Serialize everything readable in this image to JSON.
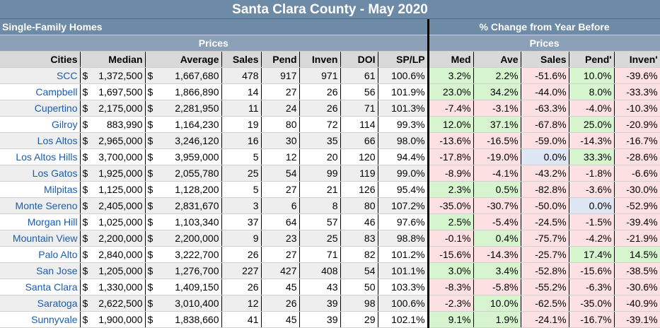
{
  "title": "Santa Clara County - May 2020",
  "left_section_title": "Single-Family Homes",
  "right_section_title": "% Change from Year Before",
  "left_prices_label": "Prices",
  "right_prices_label": "Prices",
  "headers": [
    "Cities",
    "Median",
    "Average",
    "Sales",
    "Pend",
    "Inven",
    "DOI",
    "SP/LP",
    "Med",
    "Ave",
    "Sales",
    "Pend'",
    "Inven'"
  ],
  "colors": {
    "header_blue": "#6d8aa6",
    "positive": "#d6f5cf",
    "negative": "#fde0e2",
    "neutral": "#dde6f2",
    "city_link": "#1a5dad"
  },
  "rows": [
    {
      "city": "SCC",
      "median": "1,372,500",
      "average": "1,667,680",
      "sales": "478",
      "pend": "917",
      "inven": "971",
      "doi": "61",
      "splp": "100.6%",
      "med_chg": "3.2%",
      "ave_chg": "2.2%",
      "sales_chg": "-51.6%",
      "pend_chg": "10.0%",
      "inven_chg": "-39.6%"
    },
    {
      "city": "Campbell",
      "median": "1,697,500",
      "average": "1,866,890",
      "sales": "14",
      "pend": "27",
      "inven": "26",
      "doi": "56",
      "splp": "101.9%",
      "med_chg": "23.0%",
      "ave_chg": "34.2%",
      "sales_chg": "-44.0%",
      "pend_chg": "8.0%",
      "inven_chg": "-33.3%"
    },
    {
      "city": "Cupertino",
      "median": "2,175,000",
      "average": "2,281,950",
      "sales": "11",
      "pend": "24",
      "inven": "26",
      "doi": "71",
      "splp": "101.3%",
      "med_chg": "-7.4%",
      "ave_chg": "-3.1%",
      "sales_chg": "-63.3%",
      "pend_chg": "-4.0%",
      "inven_chg": "-10.3%"
    },
    {
      "city": "Gilroy",
      "median": "883,990",
      "average": "1,164,230",
      "sales": "19",
      "pend": "80",
      "inven": "72",
      "doi": "114",
      "splp": "99.3%",
      "med_chg": "12.0%",
      "ave_chg": "37.1%",
      "sales_chg": "-67.8%",
      "pend_chg": "25.0%",
      "inven_chg": "-20.9%"
    },
    {
      "city": "Los Altos",
      "median": "2,965,000",
      "average": "3,246,120",
      "sales": "16",
      "pend": "30",
      "inven": "35",
      "doi": "66",
      "splp": "98.0%",
      "med_chg": "-13.6%",
      "ave_chg": "-16.5%",
      "sales_chg": "-59.0%",
      "pend_chg": "-14.3%",
      "inven_chg": "-16.7%"
    },
    {
      "city": "Los Altos Hills",
      "median": "3,700,000",
      "average": "3,959,000",
      "sales": "5",
      "pend": "12",
      "inven": "20",
      "doi": "120",
      "splp": "94.4%",
      "med_chg": "-17.8%",
      "ave_chg": "-19.0%",
      "sales_chg": "0.0%",
      "pend_chg": "33.3%",
      "inven_chg": "-28.6%"
    },
    {
      "city": "Los Gatos",
      "median": "1,925,000",
      "average": "2,055,780",
      "sales": "25",
      "pend": "54",
      "inven": "99",
      "doi": "119",
      "splp": "99.0%",
      "med_chg": "-8.9%",
      "ave_chg": "-4.1%",
      "sales_chg": "-43.2%",
      "pend_chg": "-1.8%",
      "inven_chg": "-6.6%"
    },
    {
      "city": "Milpitas",
      "median": "1,125,000",
      "average": "1,128,200",
      "sales": "5",
      "pend": "27",
      "inven": "21",
      "doi": "126",
      "splp": "95.4%",
      "med_chg": "2.3%",
      "ave_chg": "0.5%",
      "sales_chg": "-82.8%",
      "pend_chg": "-3.6%",
      "inven_chg": "-30.0%"
    },
    {
      "city": "Monte Sereno",
      "median": "2,405,000",
      "average": "2,831,670",
      "sales": "3",
      "pend": "6",
      "inven": "8",
      "doi": "80",
      "splp": "107.2%",
      "med_chg": "-35.0%",
      "ave_chg": "-30.7%",
      "sales_chg": "-50.0%",
      "pend_chg": "0.0%",
      "inven_chg": "-52.9%"
    },
    {
      "city": "Morgan Hill",
      "median": "1,025,000",
      "average": "1,103,340",
      "sales": "37",
      "pend": "64",
      "inven": "57",
      "doi": "46",
      "splp": "97.6%",
      "med_chg": "2.5%",
      "ave_chg": "-5.4%",
      "sales_chg": "-24.5%",
      "pend_chg": "-1.5%",
      "inven_chg": "-39.4%"
    },
    {
      "city": "Mountain View",
      "median": "2,200,000",
      "average": "2,200,000",
      "sales": "9",
      "pend": "23",
      "inven": "25",
      "doi": "83",
      "splp": "98.8%",
      "med_chg": "-0.1%",
      "ave_chg": "0.4%",
      "sales_chg": "-75.7%",
      "pend_chg": "-4.2%",
      "inven_chg": "-21.9%"
    },
    {
      "city": "Palo Alto",
      "median": "2,840,000",
      "average": "3,222,700",
      "sales": "26",
      "pend": "27",
      "inven": "71",
      "doi": "82",
      "splp": "101.2%",
      "med_chg": "-15.6%",
      "ave_chg": "-14.3%",
      "sales_chg": "-25.7%",
      "pend_chg": "17.4%",
      "inven_chg": "14.5%"
    },
    {
      "city": "San Jose",
      "median": "1,205,000",
      "average": "1,276,700",
      "sales": "227",
      "pend": "427",
      "inven": "408",
      "doi": "54",
      "splp": "101.1%",
      "med_chg": "3.0%",
      "ave_chg": "3.4%",
      "sales_chg": "-52.8%",
      "pend_chg": "-15.6%",
      "inven_chg": "-38.5%"
    },
    {
      "city": "Santa Clara",
      "median": "1,330,000",
      "average": "1,409,150",
      "sales": "26",
      "pend": "45",
      "inven": "43",
      "doi": "50",
      "splp": "103.3%",
      "med_chg": "-8.3%",
      "ave_chg": "-5.8%",
      "sales_chg": "-55.2%",
      "pend_chg": "-6.3%",
      "inven_chg": "-30.6%"
    },
    {
      "city": "Saratoga",
      "median": "2,622,500",
      "average": "3,010,400",
      "sales": "12",
      "pend": "26",
      "inven": "39",
      "doi": "98",
      "splp": "100.6%",
      "med_chg": "-2.3%",
      "ave_chg": "10.0%",
      "sales_chg": "-62.5%",
      "pend_chg": "-35.0%",
      "inven_chg": "-40.9%"
    },
    {
      "city": "Sunnyvale",
      "median": "1,900,000",
      "average": "1,838,660",
      "sales": "41",
      "pend": "45",
      "inven": "39",
      "doi": "29",
      "splp": "102.1%",
      "med_chg": "9.1%",
      "ave_chg": "1.9%",
      "sales_chg": "-24.1%",
      "pend_chg": "-16.7%",
      "inven_chg": "-39.1%"
    }
  ]
}
